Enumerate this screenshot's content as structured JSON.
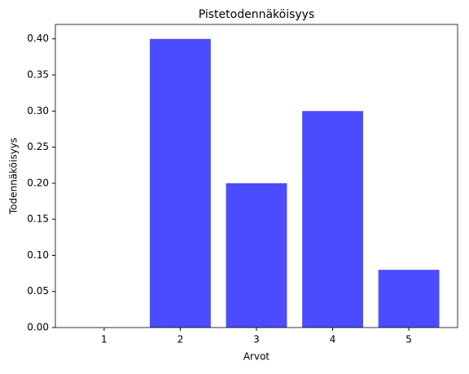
{
  "chart_data": {
    "type": "bar",
    "title": "Pistetodennäköisyys",
    "xlabel": "Arvot",
    "ylabel": "Todennäköisyys",
    "categories": [
      "1",
      "2",
      "3",
      "4",
      "5"
    ],
    "values": [
      0,
      0.4,
      0.2,
      0.3,
      0.08
    ],
    "color": "#4c4cff",
    "ylim": [
      0,
      0.42
    ],
    "yticks": [
      {
        "value": 0,
        "label": "0.00"
      },
      {
        "value": 0.05,
        "label": "0.05"
      },
      {
        "value": 0.1,
        "label": "0.10"
      },
      {
        "value": 0.15,
        "label": "0.15"
      },
      {
        "value": 0.2,
        "label": "0.20"
      },
      {
        "value": 0.25,
        "label": "0.25"
      },
      {
        "value": 0.3,
        "label": "0.30"
      },
      {
        "value": 0.35,
        "label": "0.35"
      },
      {
        "value": 0.4,
        "label": "0.40"
      }
    ],
    "grid": false
  }
}
